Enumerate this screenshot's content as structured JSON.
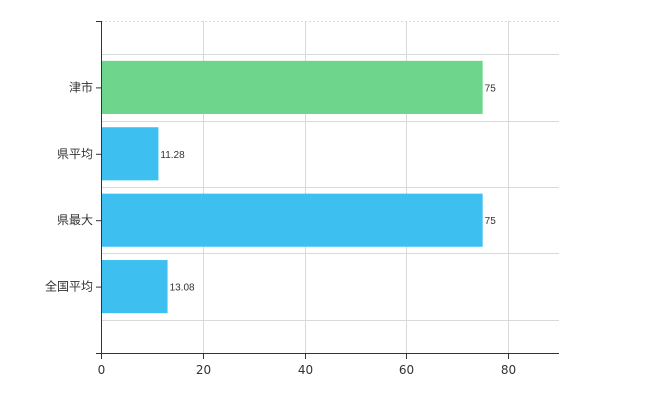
{
  "chart_data": {
    "type": "bar",
    "orientation": "horizontal",
    "categories": [
      "津市",
      "県平均",
      "県最大",
      "全国平均"
    ],
    "values": [
      75,
      11.28,
      75,
      13.08
    ],
    "value_labels": [
      "75",
      "11.28",
      "75",
      "13.08"
    ],
    "colors": [
      "#6dd58c",
      "#3dbff0",
      "#3dbff0",
      "#3dbff0"
    ],
    "xlim": [
      0,
      90
    ],
    "x_ticks": [
      0,
      20,
      40,
      60,
      80
    ],
    "title": "",
    "xlabel": "",
    "ylabel": "",
    "grid": true
  }
}
